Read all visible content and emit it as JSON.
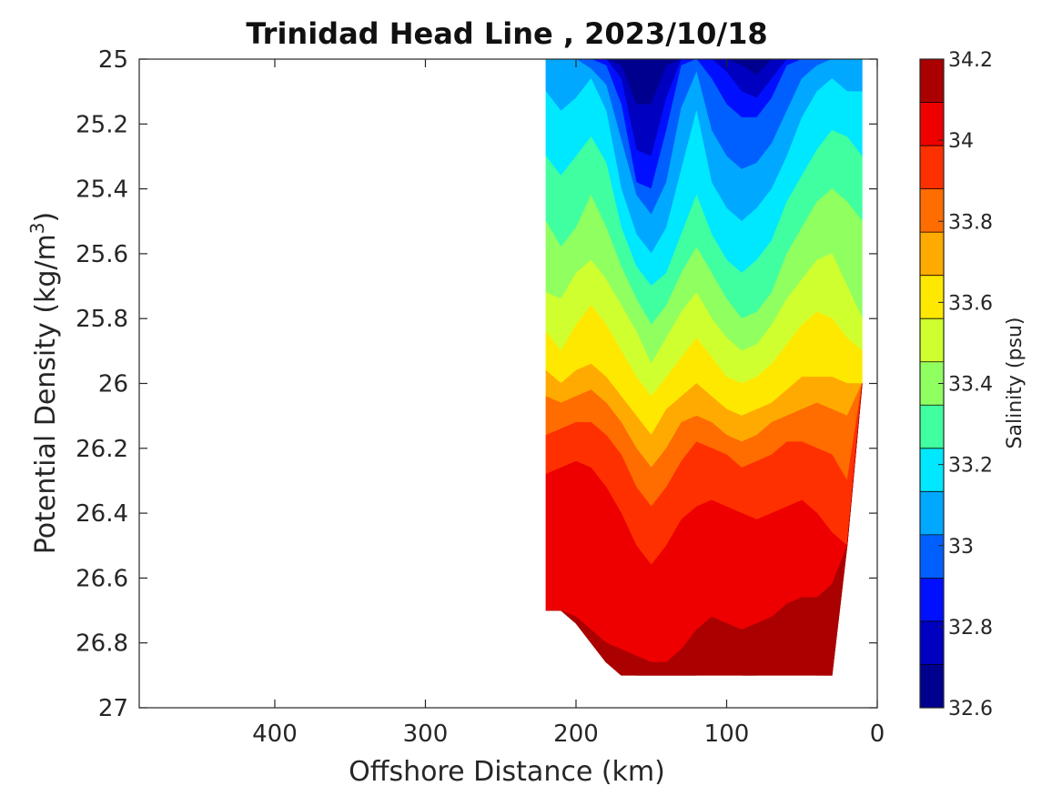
{
  "chart_data": {
    "type": "heatmap",
    "subtype": "filled-contour",
    "title": "Trinidad Head Line , 2023/10/18",
    "xlabel": "Offshore Distance (km)",
    "ylabel_main": "Potential Density (kg/m",
    "ylabel_sup": "3",
    "ylabel_close": ")",
    "xlim": [
      490,
      0
    ],
    "x_reversed": true,
    "ylim": [
      25,
      27
    ],
    "y_reversed": true,
    "xticks": [
      400,
      300,
      200,
      100,
      0
    ],
    "yticks": [
      25,
      25.2,
      25.4,
      25.6,
      25.8,
      26,
      26.2,
      26.4,
      26.6,
      26.8,
      27
    ],
    "ytick_labels": [
      "25",
      "25.2",
      "25.4",
      "25.6",
      "25.8",
      "26",
      "26.2",
      "26.4",
      "26.6",
      "26.8",
      "27"
    ],
    "grid": false,
    "colorbar": {
      "label": "Salinity (psu)",
      "min": 32.6,
      "max": 34.2,
      "step": 0.1,
      "ticks": [
        32.6,
        32.8,
        33.0,
        33.2,
        33.4,
        33.6,
        33.8,
        34.0,
        34.2
      ],
      "tick_labels": [
        "32.6",
        "32.8",
        "33",
        "33.2",
        "33.4",
        "33.6",
        "33.8",
        "34",
        "34.2"
      ],
      "colormap": "jet",
      "colors": [
        "#00008f",
        "#0000c0",
        "#0010ff",
        "#0060ff",
        "#00a8ff",
        "#00e8ff",
        "#40ffa0",
        "#90ff60",
        "#d0ff30",
        "#ffe800",
        "#ffaa00",
        "#ff6c00",
        "#ff3000",
        "#ee0000",
        "#aa0000"
      ]
    },
    "data_extent": {
      "x_range": [
        220,
        10
      ],
      "y_range": [
        25,
        26.9
      ],
      "note_cells": "filled contour section between 220 km and 10 km offshore"
    },
    "contours": {
      "x": [
        220,
        210,
        200,
        190,
        180,
        170,
        160,
        150,
        140,
        130,
        120,
        110,
        100,
        90,
        80,
        70,
        60,
        50,
        40,
        30,
        20,
        10
      ],
      "levels": [
        32.7,
        32.8,
        32.9,
        33.0,
        33.1,
        33.2,
        33.3,
        33.4,
        33.5,
        33.6,
        33.7,
        33.8,
        33.9,
        34.0,
        34.1
      ],
      "density_of_level": [
        [
          25,
          25,
          25,
          25,
          25,
          25.02,
          25.14,
          25.14,
          25.02,
          25,
          25,
          25,
          25,
          25.02,
          25.05,
          25.0,
          25,
          25,
          25,
          25,
          25,
          25
        ],
        [
          25,
          25,
          25,
          25,
          25,
          25.06,
          25.28,
          25.3,
          25.12,
          25,
          25,
          25,
          25.04,
          25.1,
          25.12,
          25.06,
          25,
          25,
          25,
          25,
          25,
          25
        ],
        [
          25,
          25,
          25,
          25,
          25.02,
          25.14,
          25.38,
          25.4,
          25.22,
          25.02,
          25,
          25.06,
          25.14,
          25.18,
          25.18,
          25.12,
          25.02,
          25,
          25,
          25,
          25,
          25
        ],
        [
          25,
          25,
          25,
          25.03,
          25.08,
          25.25,
          25.42,
          25.48,
          25.38,
          25.15,
          25.04,
          25.22,
          25.3,
          25.34,
          25.32,
          25.26,
          25.16,
          25.06,
          25.02,
          25.0,
          25,
          25
        ],
        [
          25.1,
          25.16,
          25.12,
          25.06,
          25.16,
          25.4,
          25.54,
          25.6,
          25.52,
          25.34,
          25.16,
          25.38,
          25.46,
          25.5,
          25.46,
          25.4,
          25.3,
          25.18,
          25.1,
          25.06,
          25.1,
          25.1
        ],
        [
          25.3,
          25.36,
          25.3,
          25.24,
          25.32,
          25.52,
          25.64,
          25.7,
          25.66,
          25.54,
          25.42,
          25.54,
          25.62,
          25.66,
          25.62,
          25.56,
          25.44,
          25.36,
          25.28,
          25.22,
          25.24,
          25.3
        ],
        [
          25.5,
          25.58,
          25.52,
          25.42,
          25.52,
          25.64,
          25.74,
          25.82,
          25.76,
          25.66,
          25.58,
          25.66,
          25.74,
          25.8,
          25.78,
          25.72,
          25.6,
          25.52,
          25.44,
          25.4,
          25.44,
          25.5
        ],
        [
          25.72,
          25.74,
          25.66,
          25.62,
          25.68,
          25.76,
          25.84,
          25.94,
          25.86,
          25.78,
          25.72,
          25.8,
          25.86,
          25.9,
          25.88,
          25.82,
          25.74,
          25.68,
          25.62,
          25.6,
          25.7,
          25.8
        ],
        [
          25.84,
          25.9,
          25.82,
          25.76,
          25.82,
          25.9,
          25.98,
          26.04,
          25.98,
          25.92,
          25.86,
          25.92,
          25.98,
          26.0,
          25.98,
          25.94,
          25.88,
          25.82,
          25.78,
          25.8,
          25.86,
          25.9
        ],
        [
          25.96,
          26.0,
          25.96,
          25.94,
          25.98,
          26.04,
          26.1,
          26.16,
          26.08,
          26.04,
          26.0,
          26.04,
          26.08,
          26.1,
          26.08,
          26.06,
          26.02,
          25.98,
          25.98,
          25.98,
          26.0,
          26.0
        ],
        [
          26.04,
          26.06,
          26.04,
          26.02,
          26.06,
          26.12,
          26.2,
          26.26,
          26.2,
          26.12,
          26.1,
          26.12,
          26.16,
          26.18,
          26.16,
          26.12,
          26.1,
          26.08,
          26.06,
          26.08,
          26.1,
          26.1
        ],
        [
          26.16,
          26.14,
          26.12,
          26.12,
          26.16,
          26.22,
          26.32,
          26.38,
          26.32,
          26.24,
          26.18,
          26.2,
          26.22,
          26.26,
          26.24,
          26.22,
          26.18,
          26.18,
          26.2,
          26.22,
          26.3,
          26.3
        ],
        [
          26.28,
          26.26,
          26.24,
          26.26,
          26.32,
          26.4,
          26.5,
          26.56,
          26.5,
          26.42,
          26.38,
          26.36,
          26.38,
          26.4,
          26.42,
          26.4,
          26.38,
          26.36,
          26.4,
          26.46,
          26.5,
          26.5
        ],
        [
          26.7,
          26.7,
          26.72,
          26.76,
          26.8,
          26.82,
          26.84,
          26.86,
          26.86,
          26.82,
          26.76,
          26.72,
          26.74,
          26.76,
          26.74,
          26.72,
          26.68,
          26.66,
          26.66,
          26.62,
          26.6,
          26.6
        ],
        [
          26.9,
          26.9,
          26.9,
          26.9,
          26.86,
          26.88,
          26.9,
          26.9,
          26.9,
          26.9,
          26.9,
          26.88,
          26.88,
          26.9,
          26.9,
          26.88,
          26.88,
          26.88,
          26.9,
          26.9,
          26.9,
          26.9
        ]
      ],
      "bottom_boundary": [
        26.7,
        26.7,
        26.74,
        26.8,
        26.86,
        26.9,
        26.9,
        26.9,
        26.9,
        26.9,
        26.9,
        26.9,
        26.9,
        26.9,
        26.9,
        26.9,
        26.9,
        26.9,
        26.9,
        26.9,
        26.5,
        26.0
      ]
    }
  }
}
